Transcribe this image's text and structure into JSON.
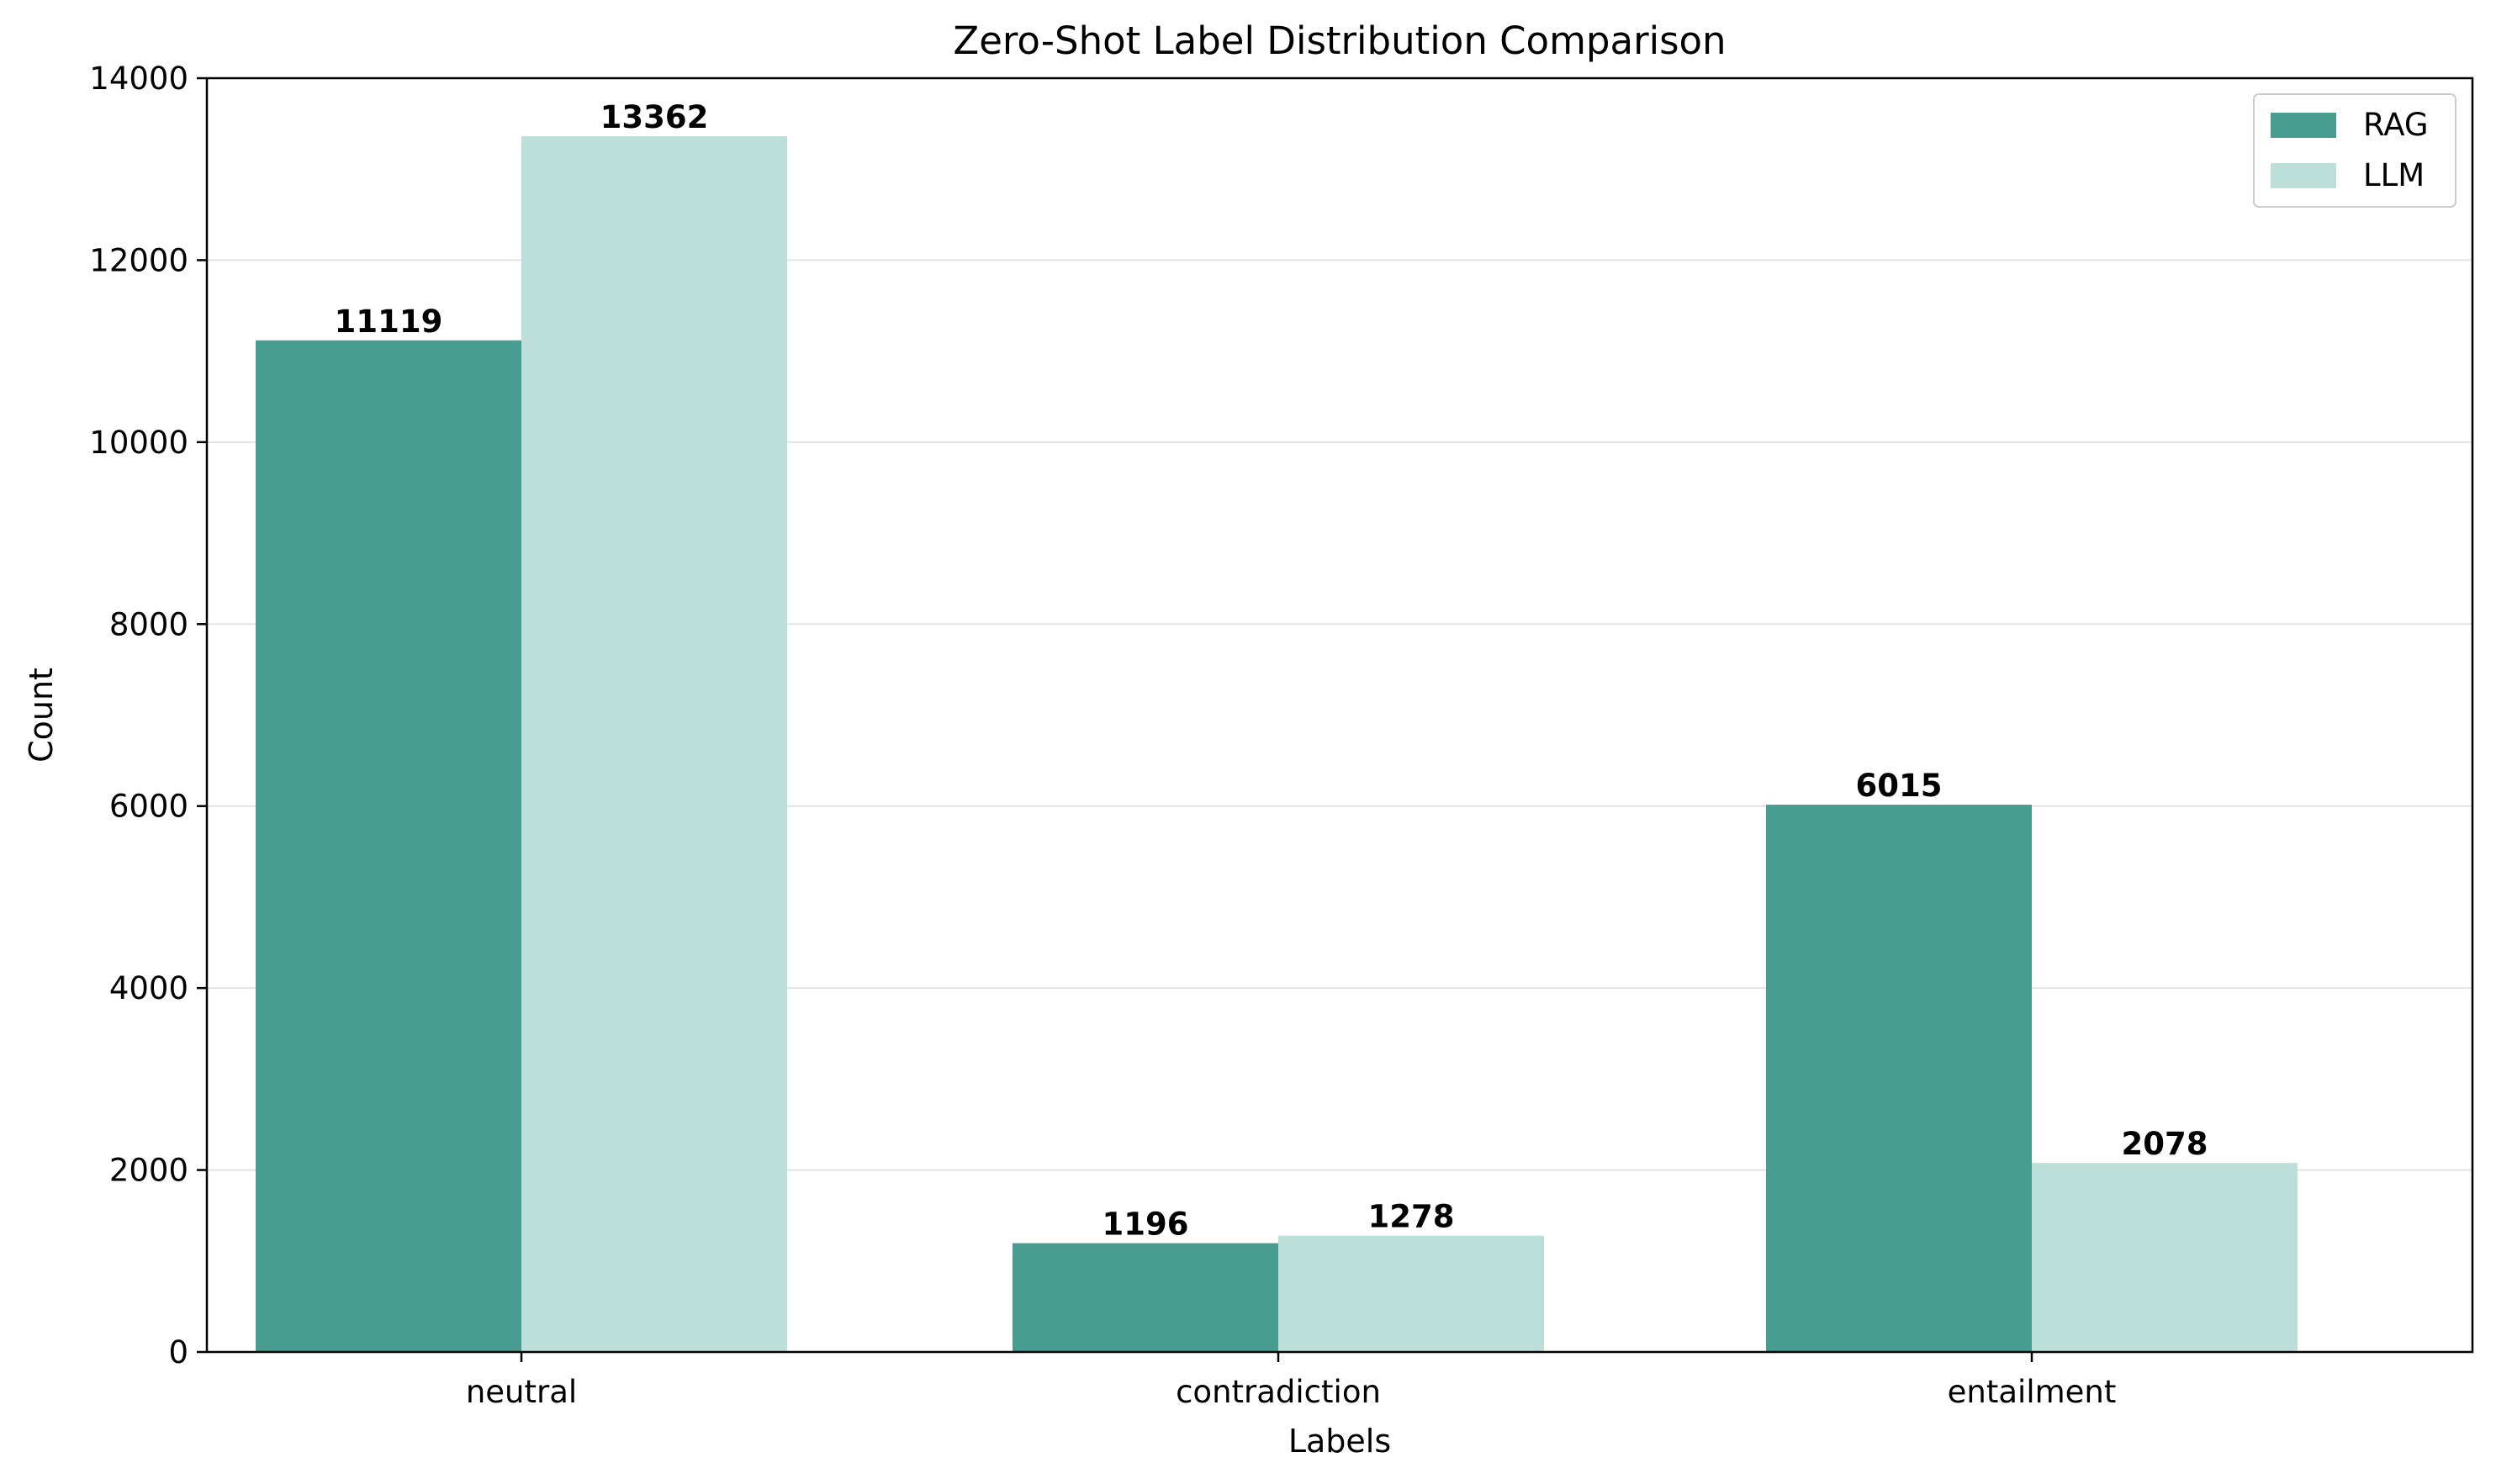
{
  "chart_data": {
    "type": "bar",
    "title": "Zero-Shot Label Distribution Comparison",
    "xlabel": "Labels",
    "ylabel": "Count",
    "categories": [
      "neutral",
      "contradiction",
      "entailment"
    ],
    "series": [
      {
        "name": "RAG",
        "color": "#489c90",
        "values": [
          11119,
          1196,
          6015
        ]
      },
      {
        "name": "LLM",
        "color": "#bcdfd9",
        "values": [
          13362,
          1278,
          2078
        ]
      }
    ],
    "ylim": [
      0,
      14000
    ],
    "yticks": [
      0,
      2000,
      4000,
      6000,
      8000,
      10000,
      12000,
      14000
    ],
    "grid": "horizontal",
    "legend_position": "top-right"
  }
}
